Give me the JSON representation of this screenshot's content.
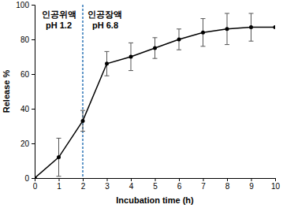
{
  "chart_data": {
    "type": "line",
    "x_label": "Incubation time (h)",
    "y_label": "Release %",
    "x": [
      0,
      1,
      2,
      3,
      4,
      5,
      6,
      7,
      8,
      9,
      10
    ],
    "values": [
      0,
      12,
      33,
      66,
      70,
      75,
      80,
      84,
      86,
      87,
      87
    ],
    "errors": [
      0,
      11,
      6,
      7,
      8,
      6,
      6,
      8,
      9,
      8,
      0
    ],
    "color": "#000000",
    "marker": "circle",
    "xlim": [
      0,
      10
    ],
    "xticks": [
      0,
      1,
      2,
      3,
      4,
      5,
      6,
      7,
      8,
      9,
      10
    ],
    "ylim": [
      0,
      100
    ],
    "yticks": [
      0,
      20,
      40,
      60,
      80,
      100
    ],
    "vline": {
      "x": 2,
      "color": "#2e75b6",
      "line_style": "dashed"
    },
    "phases": [
      {
        "name": "인공위액",
        "ph": "pH 1.2"
      },
      {
        "name": "인공장액",
        "ph": "pH 6.8"
      }
    ]
  }
}
